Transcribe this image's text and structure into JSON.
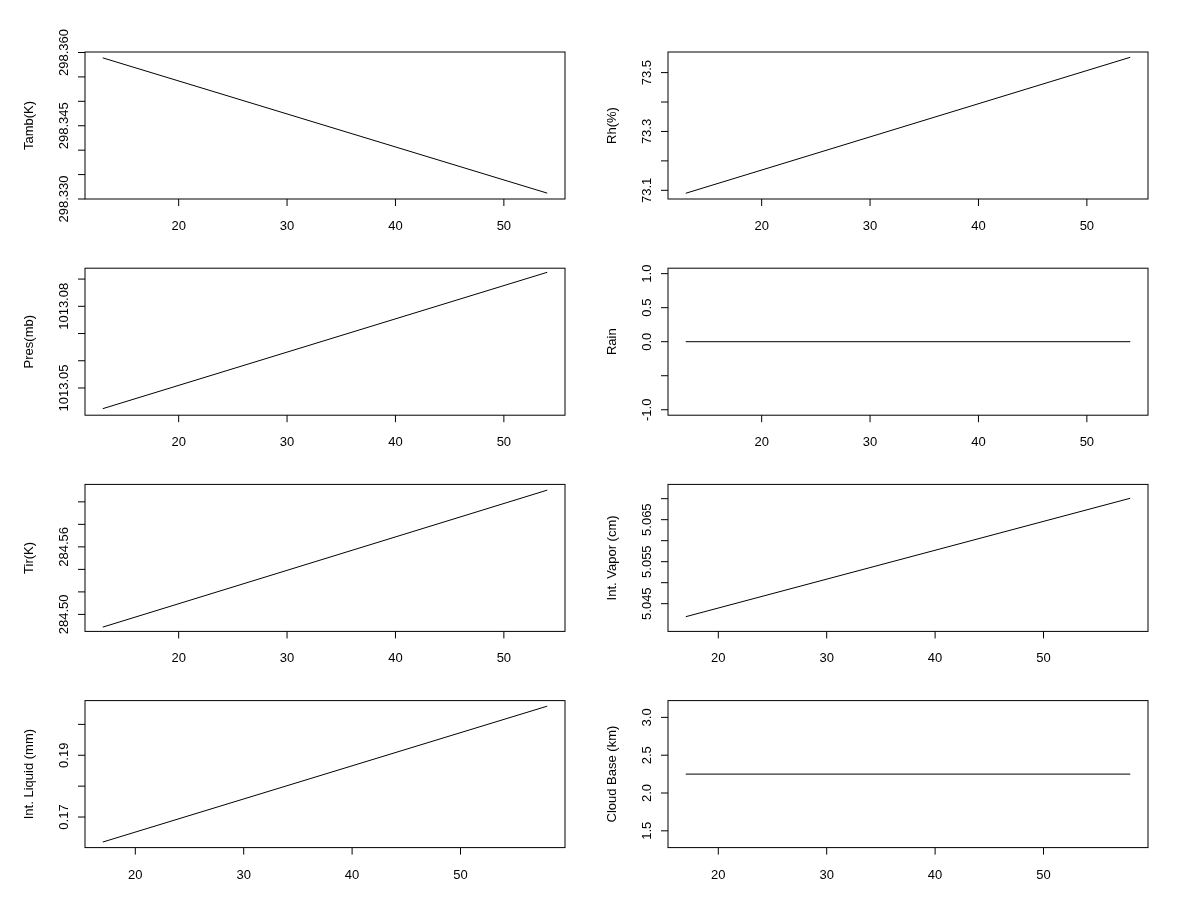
{
  "chart_data": [
    {
      "type": "line",
      "ylabel": "Tamb(K)",
      "x": [
        13,
        54
      ],
      "values": [
        298.3589,
        298.3312
      ],
      "color": "#000000",
      "xlim": [
        11.36,
        55.64
      ],
      "xticks": [
        20,
        30,
        40,
        50
      ],
      "ylim": [
        298.33,
        298.3601
      ],
      "yticks": [
        {
          "value": 298.33,
          "label": "298.330"
        },
        {
          "value": 298.335,
          "label": null
        },
        {
          "value": 298.34,
          "label": null
        },
        {
          "value": 298.345,
          "label": "298.345"
        },
        {
          "value": 298.35,
          "label": null
        },
        {
          "value": 298.355,
          "label": null
        },
        {
          "value": 298.36,
          "label": "298.360"
        }
      ]
    },
    {
      "type": "line",
      "ylabel": "Rh(%)",
      "x": [
        13,
        54
      ],
      "values": [
        73.09,
        73.552
      ],
      "color": "#000000",
      "xlim": [
        11.36,
        55.64
      ],
      "xticks": [
        20,
        30,
        40,
        50
      ],
      "ylim": [
        73.0705,
        73.57
      ],
      "yticks": [
        73.1,
        {
          "value": 73.2,
          "label": null
        },
        73.3,
        {
          "value": 73.4,
          "label": null
        },
        73.5
      ]
    },
    {
      "type": "line",
      "ylabel": "Pres(mb)",
      "x": [
        13,
        54
      ],
      "values": [
        1013.0424,
        1013.0925
      ],
      "color": "#000000",
      "xlim": [
        11.36,
        55.64
      ],
      "xticks": [
        20,
        30,
        40,
        50
      ],
      "ylim": [
        1013.04,
        1013.094
      ],
      "yticks": [
        1013.05,
        {
          "value": 1013.06,
          "label": null
        },
        {
          "value": 1013.07,
          "label": null
        },
        1013.08,
        {
          "value": 1013.09,
          "label": null
        }
      ]
    },
    {
      "type": "line",
      "ylabel": "Rain",
      "x": [
        13,
        54
      ],
      "values": [
        0,
        0
      ],
      "color": "#000000",
      "xlim": [
        11.36,
        55.64
      ],
      "xticks": [
        20,
        30,
        40,
        50
      ],
      "ylim": [
        -1.08,
        1.08
      ],
      "yticks": [
        {
          "value": -1,
          "label": "-1.0"
        },
        {
          "value": -0.5,
          "label": null
        },
        {
          "value": 0,
          "label": "0.0"
        },
        0.5,
        {
          "value": 1,
          "label": "1.0"
        }
      ]
    },
    {
      "type": "line",
      "ylabel": "Tir(K)",
      "x": [
        13,
        54
      ],
      "values": [
        284.4887,
        284.6104
      ],
      "color": "#000000",
      "xlim": [
        11.36,
        55.64
      ],
      "xticks": [
        20,
        30,
        40,
        50
      ],
      "ylim": [
        284.4849,
        284.6155
      ],
      "yticks": [
        {
          "value": 284.5,
          "label": "284.50"
        },
        {
          "value": 284.52,
          "label": null
        },
        {
          "value": 284.54,
          "label": null
        },
        {
          "value": 284.56,
          "label": "284.56"
        },
        {
          "value": 284.58,
          "label": null
        },
        {
          "value": 284.6,
          "label": null
        }
      ]
    },
    {
      "type": "line",
      "ylabel": "Int. Vapor (cm)",
      "x": [
        17,
        58
      ],
      "values": [
        5.0419,
        5.0701
      ],
      "color": "#000000",
      "xlim": [
        15.36,
        59.64
      ],
      "xticks": [
        20,
        30,
        40,
        50
      ],
      "ylim": [
        5.0384,
        5.0734
      ],
      "yticks": [
        5.045,
        {
          "value": 5.05,
          "label": null
        },
        5.055,
        {
          "value": 5.06,
          "label": null
        },
        5.065,
        {
          "value": 5.07,
          "label": null
        }
      ]
    },
    {
      "type": "line",
      "ylabel": "Int. Liquid (mm)",
      "x": [
        17,
        58
      ],
      "values": [
        0.1619,
        0.2059
      ],
      "color": "#000000",
      "xlim": [
        15.36,
        59.64
      ],
      "xticks": [
        20,
        30,
        40,
        50
      ],
      "ylim": [
        0.1601,
        0.2077
      ],
      "yticks": [
        0.17,
        {
          "value": 0.18,
          "label": null
        },
        0.19,
        {
          "value": 0.2,
          "label": null
        }
      ]
    },
    {
      "type": "line",
      "ylabel": "Cloud Base (km)",
      "x": [
        17,
        58
      ],
      "values": [
        2.25,
        2.25
      ],
      "color": "#000000",
      "xlim": [
        15.36,
        59.64
      ],
      "xticks": [
        20,
        30,
        40,
        50
      ],
      "ylim": [
        1.278,
        3.222
      ],
      "yticks": [
        1.5,
        {
          "value": 2,
          "label": "2.0"
        },
        2.5,
        {
          "value": 3,
          "label": "3.0"
        }
      ]
    }
  ]
}
